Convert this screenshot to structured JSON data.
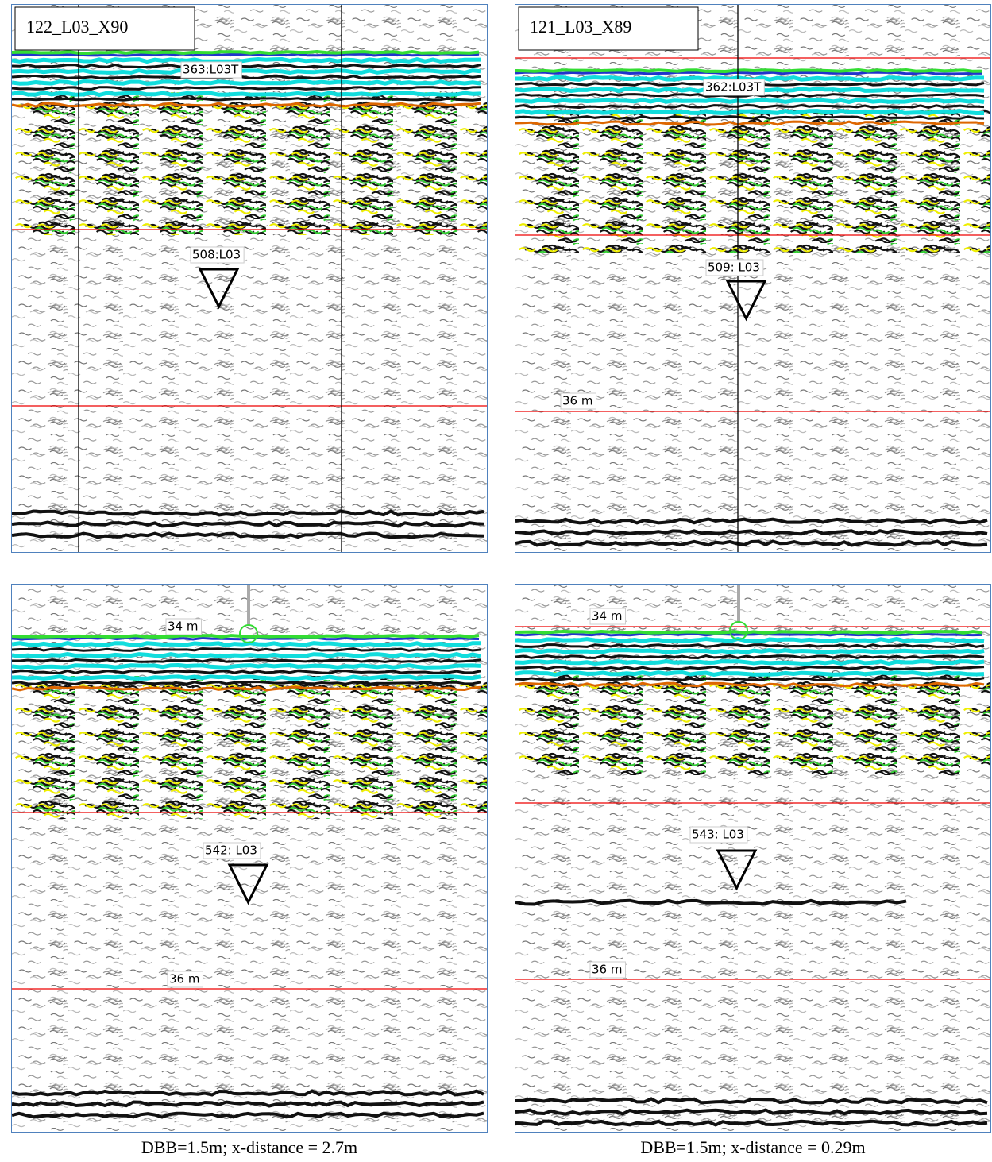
{
  "panels": [
    {
      "title": "122_L03_X90",
      "target": "363:L03T",
      "pick": "508:L03"
    },
    {
      "title": "121_L03_X89",
      "target": "362:L03T",
      "pick": "509: L03",
      "depth_bottom": "36 m"
    },
    {
      "depth_top": "34 m",
      "pick": "542: L03",
      "depth_bottom": "36 m"
    },
    {
      "depth_top": "34 m",
      "pick": "543: L03",
      "depth_bottom": "36 m"
    }
  ],
  "captions": [
    "DBB=1.5m; x-distance = 2.7m",
    "DBB=1.5m; x-distance = 0.29m"
  ]
}
